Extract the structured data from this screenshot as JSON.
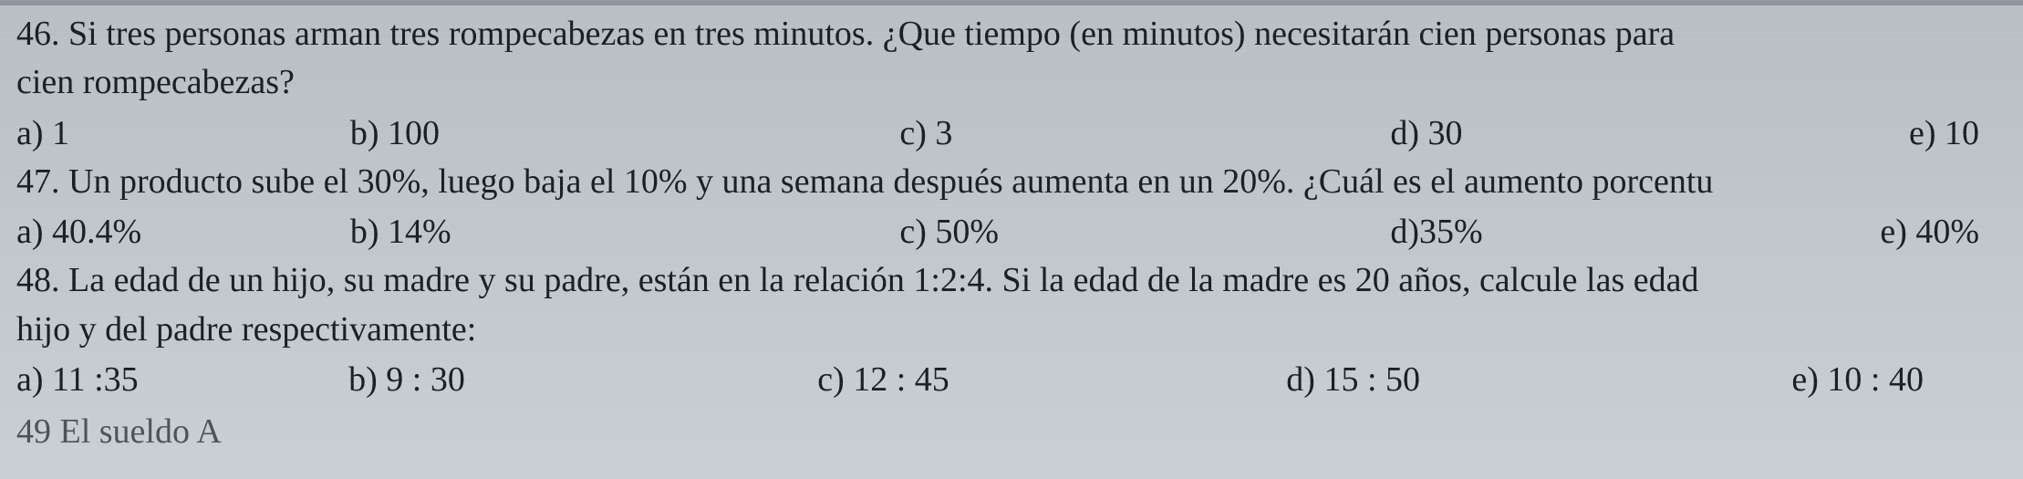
{
  "text_color": "#1a1f24",
  "background_gradient": [
    "#b8bec4",
    "#bfc5ca",
    "#c9cfd3"
  ],
  "font_family": "Times New Roman",
  "font_size_pt": 28,
  "questions": [
    {
      "number": "46",
      "prompt_line1": "46. Si tres personas arman tres rompecabezas en tres minutos. ¿Que tiempo (en minutos) necesitarán cien personas para",
      "prompt_line2": "cien rompecabezas?",
      "options": {
        "a": "a) 1",
        "b": "b) 100",
        "c": "c) 3",
        "d": "d) 30",
        "e": "e) 10"
      }
    },
    {
      "number": "47",
      "prompt_line1": "47. Un producto sube el 30%, luego baja el 10% y una semana después aumenta en un 20%. ¿Cuál es el aumento porcentu",
      "options": {
        "a": "a) 40.4%",
        "b": "b) 14%",
        "c": "c) 50%",
        "d": "d)35%",
        "e": "e) 40%"
      }
    },
    {
      "number": "48",
      "prompt_line1": "48. La edad de un hijo, su madre y su padre, están en la relación 1:2:4. Si la edad de la madre es 20 años, calcule las edad",
      "prompt_line2": "hijo y del padre respectivamente:",
      "options": {
        "a": "a) 11 :35",
        "b": "b) 9 : 30",
        "c": "c) 12 : 45",
        "d": "d) 15 : 50",
        "e": "e) 10 : 40"
      }
    }
  ],
  "cutoff_line": "49  El sueldo  A"
}
